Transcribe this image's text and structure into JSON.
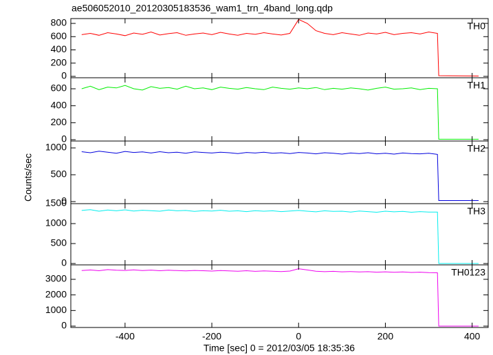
{
  "chart_data": [
    {
      "type": "line",
      "title": "ae506052010_20120305183536_wam1_trn_4band_long.qdp",
      "label": "TH0",
      "color": "#ff0000",
      "x": [
        -500,
        -480,
        -460,
        -440,
        -420,
        -400,
        -380,
        -360,
        -340,
        -320,
        -300,
        -280,
        -260,
        -240,
        -220,
        -200,
        -180,
        -160,
        -140,
        -120,
        -100,
        -80,
        -60,
        -40,
        -20,
        0,
        20,
        40,
        60,
        80,
        100,
        120,
        140,
        160,
        180,
        200,
        220,
        240,
        260,
        280,
        300,
        320,
        323,
        415
      ],
      "values": [
        630,
        650,
        620,
        660,
        640,
        615,
        655,
        635,
        670,
        625,
        645,
        660,
        620,
        640,
        655,
        630,
        665,
        640,
        620,
        650,
        635,
        660,
        640,
        625,
        650,
        860,
        800,
        690,
        650,
        630,
        660,
        640,
        620,
        655,
        640,
        665,
        630,
        650,
        660,
        640,
        670,
        650,
        10,
        5
      ],
      "xlim": [
        -525,
        437
      ],
      "ylim": [
        -21,
        873
      ],
      "yticks": [
        0,
        200,
        400,
        600,
        800
      ]
    },
    {
      "type": "line",
      "label": "TH1",
      "color": "#00ee00",
      "x": [
        -500,
        -480,
        -460,
        -440,
        -420,
        -400,
        -380,
        -360,
        -340,
        -320,
        -300,
        -280,
        -260,
        -240,
        -220,
        -200,
        -180,
        -160,
        -140,
        -120,
        -100,
        -80,
        -60,
        -40,
        -20,
        0,
        20,
        40,
        60,
        80,
        100,
        120,
        140,
        160,
        180,
        200,
        220,
        240,
        260,
        280,
        300,
        320,
        323,
        415
      ],
      "values": [
        600,
        630,
        590,
        620,
        610,
        640,
        600,
        585,
        625,
        605,
        615,
        595,
        630,
        600,
        610,
        590,
        620,
        605,
        595,
        615,
        600,
        590,
        620,
        605,
        595,
        610,
        600,
        615,
        590,
        605,
        595,
        610,
        600,
        585,
        605,
        620,
        595,
        600,
        610,
        590,
        605,
        600,
        5,
        5
      ],
      "xlim": [
        -525,
        437
      ],
      "ylim": [
        -16,
        730
      ],
      "yticks": [
        0,
        200,
        400,
        600
      ]
    },
    {
      "type": "line",
      "label": "TH2",
      "color": "#0000dd",
      "ylabel": "Counts/sec",
      "x": [
        -500,
        -480,
        -460,
        -440,
        -420,
        -400,
        -380,
        -360,
        -340,
        -320,
        -300,
        -280,
        -260,
        -240,
        -220,
        -200,
        -180,
        -160,
        -140,
        -120,
        -100,
        -80,
        -60,
        -40,
        -20,
        0,
        20,
        40,
        60,
        80,
        100,
        120,
        140,
        160,
        180,
        200,
        220,
        240,
        260,
        280,
        300,
        320,
        323,
        415
      ],
      "values": [
        930,
        910,
        940,
        920,
        900,
        935,
        915,
        925,
        905,
        930,
        910,
        920,
        900,
        925,
        915,
        905,
        920,
        910,
        895,
        915,
        905,
        920,
        900,
        910,
        895,
        915,
        905,
        890,
        910,
        900,
        885,
        905,
        895,
        910,
        890,
        900,
        885,
        905,
        895,
        890,
        900,
        880,
        20,
        20
      ],
      "xlim": [
        -525,
        437
      ],
      "ylim": [
        -38,
        1128
      ],
      "yticks": [
        0,
        500,
        1000
      ]
    },
    {
      "type": "line",
      "label": "TH3",
      "color": "#00eeee",
      "x": [
        -500,
        -480,
        -460,
        -440,
        -420,
        -400,
        -380,
        -360,
        -340,
        -320,
        -300,
        -280,
        -260,
        -240,
        -220,
        -200,
        -180,
        -160,
        -140,
        -120,
        -100,
        -80,
        -60,
        -40,
        -20,
        0,
        20,
        40,
        60,
        80,
        100,
        120,
        140,
        160,
        180,
        200,
        220,
        240,
        260,
        280,
        300,
        320,
        323,
        415
      ],
      "values": [
        1330,
        1350,
        1310,
        1340,
        1320,
        1345,
        1315,
        1335,
        1325,
        1310,
        1340,
        1320,
        1330,
        1305,
        1325,
        1315,
        1335,
        1310,
        1320,
        1300,
        1325,
        1310,
        1320,
        1300,
        1315,
        1330,
        1310,
        1295,
        1320,
        1305,
        1310,
        1290,
        1315,
        1300,
        1285,
        1310,
        1295,
        1305,
        1285,
        1300,
        1290,
        1290,
        0,
        0
      ],
      "xlim": [
        -525,
        437
      ],
      "ylim": [
        -34,
        1500
      ],
      "yticks": [
        0,
        500,
        1000,
        1500
      ]
    },
    {
      "type": "line",
      "label": "TH0123",
      "color": "#ee00ee",
      "xlabel": "Time [sec] 0 = 2012/03/05 18:35:36",
      "x": [
        -500,
        -480,
        -460,
        -440,
        -420,
        -400,
        -380,
        -360,
        -340,
        -320,
        -300,
        -280,
        -260,
        -240,
        -220,
        -200,
        -180,
        -160,
        -140,
        -120,
        -100,
        -80,
        -60,
        -40,
        -20,
        0,
        20,
        40,
        60,
        80,
        100,
        120,
        140,
        160,
        180,
        200,
        220,
        240,
        260,
        280,
        300,
        320,
        323,
        415
      ],
      "values": [
        3560,
        3600,
        3550,
        3620,
        3580,
        3570,
        3610,
        3560,
        3590,
        3550,
        3580,
        3560,
        3540,
        3570,
        3550,
        3530,
        3560,
        3540,
        3520,
        3550,
        3510,
        3540,
        3520,
        3500,
        3530,
        3680,
        3600,
        3520,
        3490,
        3510,
        3480,
        3500,
        3470,
        3490,
        3460,
        3480,
        3450,
        3470,
        3440,
        3460,
        3430,
        3420,
        0,
        0
      ],
      "xlim": [
        -525,
        437
      ],
      "ylim": [
        -88,
        3926
      ],
      "yticks": [
        0,
        1000,
        2000,
        3000
      ],
      "xticks": [
        -400,
        -200,
        0,
        200,
        400
      ]
    }
  ]
}
